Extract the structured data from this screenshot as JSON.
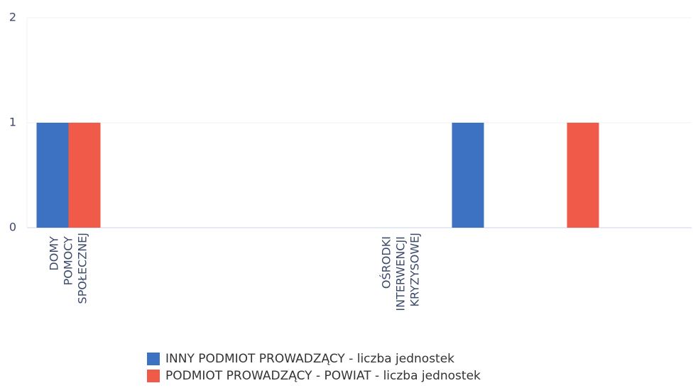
{
  "chart_data": {
    "type": "bar",
    "categories": [
      "DOMY POMOCY SPOŁECZNEJ",
      null,
      null,
      null,
      "OŚRODKI INTERWENCJI KRYZYSOWEJ",
      null,
      null,
      null
    ],
    "series": [
      {
        "name": "INNY PODMIOT PROWADZĄCY - liczba jednostek",
        "color": "#3d72c2",
        "values": [
          1,
          null,
          null,
          null,
          null,
          1,
          null,
          null
        ]
      },
      {
        "name": "PODMIOT PROWADZĄCY - POWIAT - liczba jednostek",
        "color": "#f05a48",
        "values": [
          1,
          null,
          null,
          null,
          null,
          null,
          1,
          null
        ]
      }
    ],
    "ylim": [
      0,
      2
    ],
    "yticks": [
      0,
      1,
      2
    ],
    "grid": true,
    "legend": "bottom"
  }
}
